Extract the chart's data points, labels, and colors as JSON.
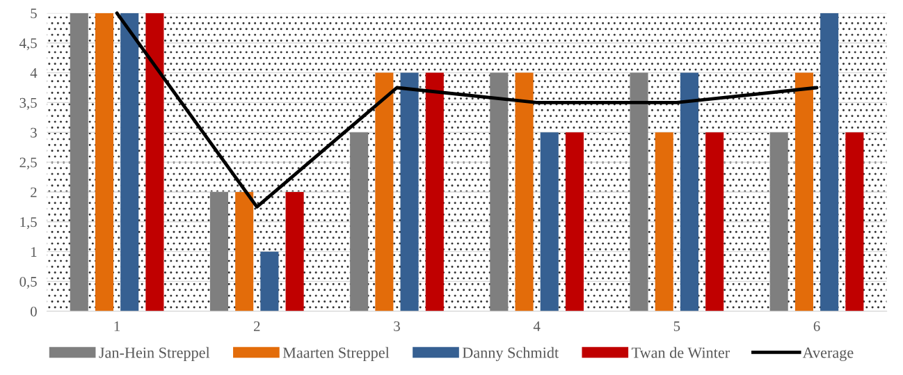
{
  "chart_data": {
    "type": "bar",
    "categories": [
      "1",
      "2",
      "3",
      "4",
      "5",
      "6"
    ],
    "series": [
      {
        "name": "Jan-Hein Streppel",
        "color": "#7f7f7f",
        "values": [
          5,
          2,
          3,
          4,
          4,
          3
        ]
      },
      {
        "name": "Maarten Streppel",
        "color": "#e36c0a",
        "values": [
          5,
          2,
          4,
          4,
          3,
          4
        ]
      },
      {
        "name": "Danny Schmidt",
        "color": "#366092",
        "values": [
          5,
          1,
          4,
          3,
          4,
          5
        ]
      },
      {
        "name": "Twan de Winter",
        "color": "#c00000",
        "values": [
          5,
          2,
          4,
          3,
          3,
          3
        ]
      },
      {
        "name": "Average",
        "type": "line",
        "color": "#000000",
        "values": [
          5,
          1.75,
          3.75,
          3.5,
          3.5,
          3.75
        ]
      }
    ],
    "ylim": [
      0,
      5
    ],
    "yticks": [
      0,
      {
        "value": 0.5,
        "label": "0,5"
      },
      1,
      {
        "value": 1.5,
        "label": "1,5"
      },
      2,
      {
        "value": 2.5,
        "label": "2,5"
      },
      3,
      {
        "value": 3.5,
        "label": "3,5"
      },
      4,
      {
        "value": 4.5,
        "label": "4,5"
      },
      5
    ],
    "grid": "y",
    "legend": "bottom",
    "marker": "none",
    "line_style": "solid"
  }
}
